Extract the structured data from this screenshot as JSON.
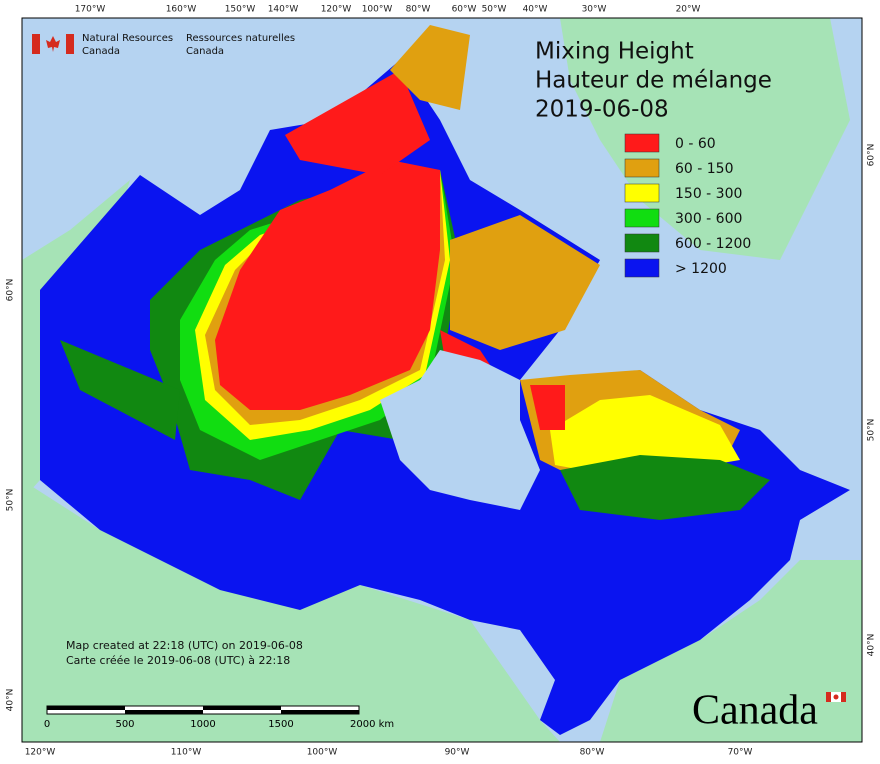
{
  "header": {
    "agency_en": "Natural Resources",
    "agency_en2": "Canada",
    "agency_fr": "Ressources naturelles",
    "agency_fr2": "Canada"
  },
  "title": {
    "line1": "Mixing Height",
    "line2": "Hauteur de mélange",
    "date": "2019-06-08"
  },
  "legend": [
    {
      "label": "0 - 60",
      "color": "#ff1a1a"
    },
    {
      "label": "60 - 150",
      "color": "#e0a010"
    },
    {
      "label": "150 - 300",
      "color": "#ffff00"
    },
    {
      "label": "300 - 600",
      "color": "#11dd11"
    },
    {
      "label": "600 - 1200",
      "color": "#118811"
    },
    {
      "label": "> 1200",
      "color": "#0a14f0"
    }
  ],
  "graticule": {
    "top": [
      "170°W",
      "160°W",
      "150°W",
      "140°W",
      "120°W",
      "100°W",
      "80°W",
      "60°W",
      "50°W",
      "40°W",
      "30°W",
      "20°W"
    ],
    "bottom": [
      "120°W",
      "110°W",
      "100°W",
      "90°W",
      "80°W",
      "70°W"
    ],
    "left": [
      "60°N",
      "50°N",
      "40°N"
    ],
    "right": [
      "60°N",
      "50°N",
      "40°N"
    ]
  },
  "credits": {
    "en": "Map created at 22:18 (UTC) on 2019-06-08",
    "fr": "Carte créée le 2019-06-08 (UTC) à 22:18"
  },
  "scale_bar": [
    "0",
    "500",
    "1000",
    "1500",
    "2000 km"
  ],
  "wordmark": "Canada"
}
